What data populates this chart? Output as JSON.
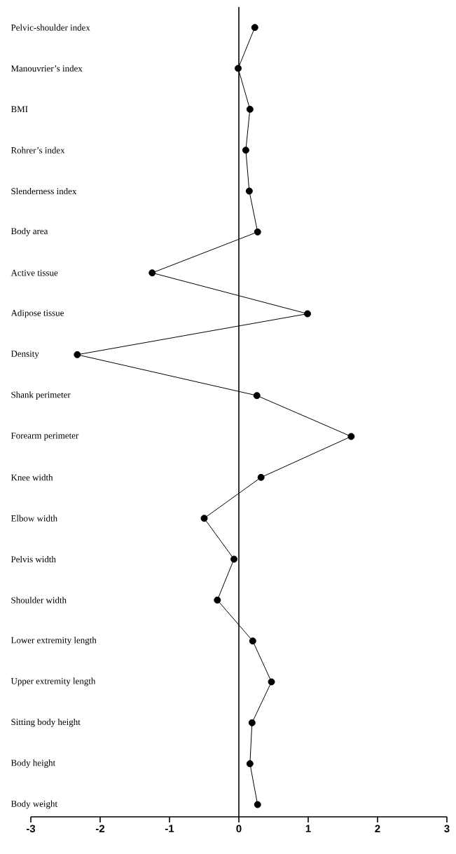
{
  "chart_data": {
    "type": "line",
    "orientation": "horizontal",
    "marker": "circle",
    "line_style": "solid",
    "color": "#000000",
    "categories": [
      "Pelvic-shoulder index",
      "Manouvrier’s index",
      "BMI",
      "Rohrer’s index",
      "Slenderness index",
      "Body area",
      "Active tissue",
      "Adipose tissue",
      "Density",
      "Shank perimeter",
      "Forearm perimeter",
      "Knee width",
      "Elbow width",
      "Pelvis width",
      "Shoulder width",
      "Lower extremity length",
      "Upper extremity length",
      "Sitting body height",
      "Body height",
      "Body weight"
    ],
    "values": [
      0.23,
      -0.01,
      0.16,
      0.1,
      0.15,
      0.27,
      -1.25,
      0.99,
      -2.33,
      0.26,
      1.62,
      0.32,
      -0.5,
      -0.07,
      -0.31,
      0.2,
      0.47,
      0.19,
      0.16,
      0.27
    ],
    "xlim": [
      -3,
      3
    ],
    "xticks": [
      -3,
      -2,
      -1,
      0,
      1,
      2,
      3
    ]
  }
}
